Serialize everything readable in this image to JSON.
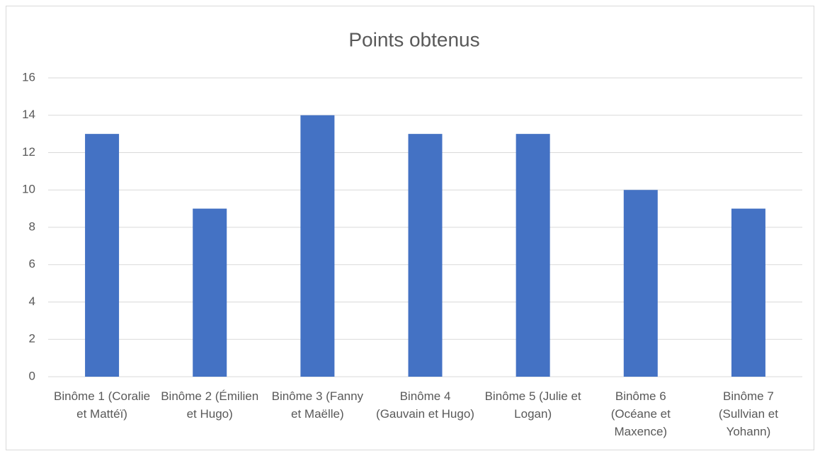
{
  "chart_data": {
    "type": "bar",
    "title": "Points obtenus",
    "categories": [
      "Binôme 1 (Coralie et Mattéï)",
      "Binôme 2 (Émilien et Hugo)",
      "Binôme 3 (Fanny et Maëlle)",
      "Binôme 4 (Gauvain et Hugo)",
      "Binôme 5 (Julie et Logan)",
      "Binôme 6 (Océane et Maxence)",
      "Binôme 7 (Sullvian et Yohann)"
    ],
    "values": [
      13,
      9,
      14,
      13,
      13,
      10,
      9
    ],
    "color": "#4472c4",
    "ylim": [
      0,
      16
    ],
    "yticks": [
      0,
      2,
      4,
      6,
      8,
      10,
      12,
      14,
      16
    ],
    "grid": true
  }
}
